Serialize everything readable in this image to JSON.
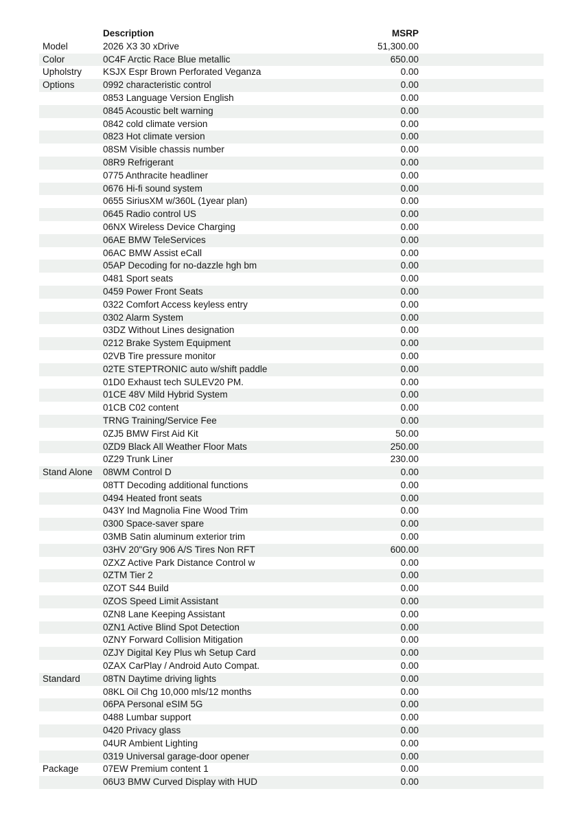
{
  "header": {
    "description_label": "Description",
    "msrp_label": "MSRP"
  },
  "colors": {
    "background": "#ffffff",
    "stripe": "#eef1ef",
    "text": "#141414"
  },
  "rows": [
    {
      "category": "Model",
      "description": "2026 X3 30 xDrive",
      "msrp": "51,300.00"
    },
    {
      "category": "Color",
      "description": "0C4F Arctic Race Blue metallic",
      "msrp": "650.00"
    },
    {
      "category": "Upholstry",
      "description": "KSJX Espr Brown Perforated Veganza",
      "msrp": "0.00"
    },
    {
      "category": "Options",
      "description": "0992 characteristic control",
      "msrp": "0.00"
    },
    {
      "category": "",
      "description": "0853 Language Version English",
      "msrp": "0.00"
    },
    {
      "category": "",
      "description": "0845 Acoustic belt warning",
      "msrp": "0.00"
    },
    {
      "category": "",
      "description": "0842 cold climate version",
      "msrp": "0.00"
    },
    {
      "category": "",
      "description": "0823 Hot climate version",
      "msrp": "0.00"
    },
    {
      "category": "",
      "description": "08SM Visible chassis number",
      "msrp": "0.00"
    },
    {
      "category": "",
      "description": "08R9 Refrigerant",
      "msrp": "0.00"
    },
    {
      "category": "",
      "description": "0775 Anthracite headliner",
      "msrp": "0.00"
    },
    {
      "category": "",
      "description": "0676 Hi-fi sound system",
      "msrp": "0.00"
    },
    {
      "category": "",
      "description": "0655 SiriusXM w/360L (1year plan)",
      "msrp": "0.00"
    },
    {
      "category": "",
      "description": "0645 Radio control US",
      "msrp": "0.00"
    },
    {
      "category": "",
      "description": "06NX Wireless Device Charging",
      "msrp": "0.00"
    },
    {
      "category": "",
      "description": "06AE BMW TeleServices",
      "msrp": "0.00"
    },
    {
      "category": "",
      "description": "06AC BMW Assist eCall",
      "msrp": "0.00"
    },
    {
      "category": "",
      "description": "05AP Decoding for no-dazzle hgh bm",
      "msrp": "0.00"
    },
    {
      "category": "",
      "description": "0481 Sport seats",
      "msrp": "0.00"
    },
    {
      "category": "",
      "description": "0459 Power Front Seats",
      "msrp": "0.00"
    },
    {
      "category": "",
      "description": "0322 Comfort Access keyless entry",
      "msrp": "0.00"
    },
    {
      "category": "",
      "description": "0302 Alarm System",
      "msrp": "0.00"
    },
    {
      "category": "",
      "description": "03DZ Without Lines designation",
      "msrp": "0.00"
    },
    {
      "category": "",
      "description": "0212 Brake System Equipment",
      "msrp": "0.00"
    },
    {
      "category": "",
      "description": "02VB Tire pressure monitor",
      "msrp": "0.00"
    },
    {
      "category": "",
      "description": "02TE STEPTRONIC auto w/shift paddle",
      "msrp": "0.00"
    },
    {
      "category": "",
      "description": "01D0 Exhaust tech SULEV20 PM.",
      "msrp": "0.00"
    },
    {
      "category": "",
      "description": "01CE 48V Mild Hybrid System",
      "msrp": "0.00"
    },
    {
      "category": "",
      "description": "01CB C02 content",
      "msrp": "0.00"
    },
    {
      "category": "",
      "description": "TRNG Training/Service Fee",
      "msrp": "0.00"
    },
    {
      "category": "",
      "description": "0ZJ5 BMW First Aid Kit",
      "msrp": "50.00"
    },
    {
      "category": "",
      "description": "0ZD9 Black All Weather Floor Mats",
      "msrp": "250.00"
    },
    {
      "category": "",
      "description": "0Z29 Trunk Liner",
      "msrp": "230.00"
    },
    {
      "category": "Stand Alone",
      "description": "08WM Control D",
      "msrp": "0.00"
    },
    {
      "category": "",
      "description": "08TT Decoding additional functions",
      "msrp": "0.00"
    },
    {
      "category": "",
      "description": "0494 Heated front seats",
      "msrp": "0.00"
    },
    {
      "category": "",
      "description": "043Y Ind Magnolia Fine Wood Trim",
      "msrp": "0.00"
    },
    {
      "category": "",
      "description": "0300 Space-saver spare",
      "msrp": "0.00"
    },
    {
      "category": "",
      "description": "03MB Satin aluminum exterior trim",
      "msrp": "0.00"
    },
    {
      "category": "",
      "description": "03HV 20\"Gry 906 A/S Tires Non RFT",
      "msrp": "600.00"
    },
    {
      "category": "",
      "description": "0ZXZ Active Park Distance Control w",
      "msrp": "0.00"
    },
    {
      "category": "",
      "description": "0ZTM Tier 2",
      "msrp": "0.00"
    },
    {
      "category": "",
      "description": "0ZOT S44 Build",
      "msrp": "0.00"
    },
    {
      "category": "",
      "description": "0ZOS Speed Limit Assistant",
      "msrp": "0.00"
    },
    {
      "category": "",
      "description": "0ZN8 Lane Keeping Assistant",
      "msrp": "0.00"
    },
    {
      "category": "",
      "description": "0ZN1 Active Blind Spot Detection",
      "msrp": "0.00"
    },
    {
      "category": "",
      "description": "0ZNY Forward Collision Mitigation",
      "msrp": "0.00"
    },
    {
      "category": "",
      "description": "0ZJY Digital Key Plus wh Setup Card",
      "msrp": "0.00"
    },
    {
      "category": "",
      "description": "0ZAX CarPlay / Android Auto Compat.",
      "msrp": "0.00"
    },
    {
      "category": "Standard",
      "description": "08TN Daytime driving lights",
      "msrp": "0.00"
    },
    {
      "category": "",
      "description": "08KL Oil Chg 10,000 mls/12 months",
      "msrp": "0.00"
    },
    {
      "category": "",
      "description": "06PA Personal eSIM 5G",
      "msrp": "0.00"
    },
    {
      "category": "",
      "description": "0488 Lumbar support",
      "msrp": "0.00"
    },
    {
      "category": "",
      "description": "0420 Privacy glass",
      "msrp": "0.00"
    },
    {
      "category": "",
      "description": "04UR Ambient Lighting",
      "msrp": "0.00"
    },
    {
      "category": "",
      "description": "0319 Universal garage-door opener",
      "msrp": "0.00"
    },
    {
      "category": "Package",
      "description": "07EW Premium content 1",
      "msrp": "0.00"
    },
    {
      "category": "",
      "description": "06U3 BMW Curved Display with HUD",
      "msrp": "0.00"
    }
  ]
}
